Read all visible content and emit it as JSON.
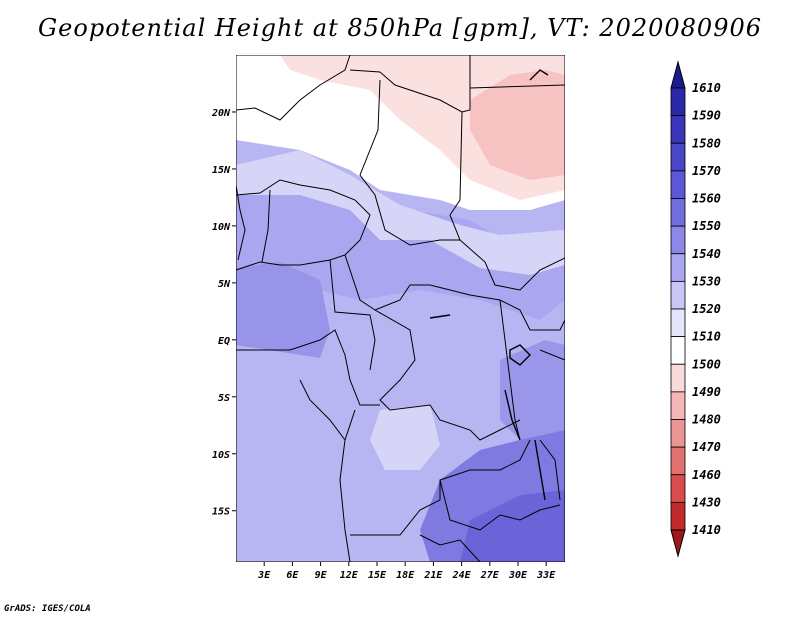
{
  "title": "Geopotential Height at 850hPa [gpm], VT: 2020080906",
  "footer": "GrADS: IGES/COLA",
  "map": {
    "lat_labels": [
      "20N",
      "15N",
      "10N",
      "5N",
      "EQ",
      "5S",
      "10S",
      "15S"
    ],
    "lat_values": [
      20,
      15,
      10,
      5,
      0,
      -5,
      -10,
      -15
    ],
    "lon_labels": [
      "3E",
      "6E",
      "9E",
      "12E",
      "15E",
      "18E",
      "21E",
      "24E",
      "27E",
      "30E",
      "33E"
    ],
    "lon_values": [
      3,
      6,
      9,
      12,
      15,
      18,
      21,
      24,
      27,
      30,
      33
    ],
    "lon_range": [
      0,
      35
    ],
    "lat_range": [
      -19.5,
      25
    ]
  },
  "colorbar": {
    "labels": [
      "1610",
      "1590",
      "1580",
      "1570",
      "1560",
      "1550",
      "1540",
      "1530",
      "1520",
      "1510",
      "1500",
      "1490",
      "1480",
      "1470",
      "1460",
      "1430",
      "1410"
    ],
    "colors": [
      "#1c1a8c",
      "#2a28a6",
      "#3a36b8",
      "#4a46c8",
      "#5c57d6",
      "#736ee0",
      "#8d88e8",
      "#aaa6f0",
      "#c8c6f6",
      "#e4e4fa",
      "#ffffff",
      "#fadada",
      "#f4b6b6",
      "#ec9494",
      "#e27070",
      "#d84c4c",
      "#c02a2a",
      "#a01818"
    ]
  },
  "colors": {
    "ocean_land_base": "#b8b6f2",
    "west_coast": "#9894ea",
    "southeast": "#6f6adc",
    "mid_blue": "#c8c6f4",
    "pale": "#e0e0fa",
    "white": "#ffffff",
    "pink": "#fcdede",
    "pink2": "#f8c4c4"
  }
}
